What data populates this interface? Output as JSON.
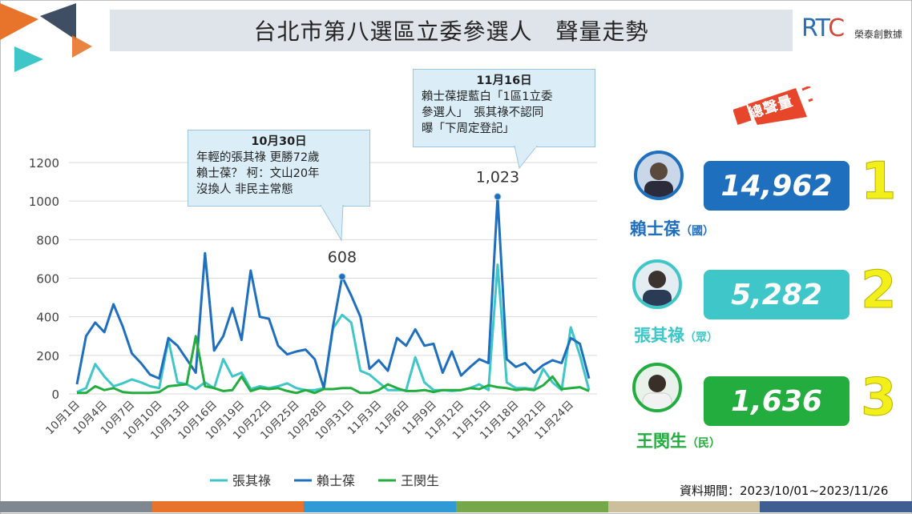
{
  "title": "台北市第八選區立委參選人　聲量走勢",
  "logo": {
    "rtc": "RT",
    "rtc_c": "C",
    "sub": "榮泰創數據"
  },
  "chart_data": {
    "type": "line",
    "ylim": [
      0,
      1200
    ],
    "yticks": [
      0,
      200,
      400,
      600,
      800,
      1000,
      1200
    ],
    "x": [
      "10月1日",
      "10月2日",
      "10月3日",
      "10月4日",
      "10月5日",
      "10月6日",
      "10月7日",
      "10月8日",
      "10月9日",
      "10月10日",
      "10月11日",
      "10月12日",
      "10月13日",
      "10月14日",
      "10月15日",
      "10月16日",
      "10月17日",
      "10月18日",
      "10月19日",
      "10月20日",
      "10月21日",
      "10月22日",
      "10月23日",
      "10月24日",
      "10月25日",
      "10月26日",
      "10月27日",
      "10月28日",
      "10月29日",
      "10月30日",
      "10月31日",
      "11月1日",
      "11月2日",
      "11月3日",
      "11月4日",
      "11月5日",
      "11月6日",
      "11月7日",
      "11月8日",
      "11月9日",
      "11月10日",
      "11月11日",
      "11月12日",
      "11月13日",
      "11月14日",
      "11月15日",
      "11月16日",
      "11月17日",
      "11月18日",
      "11月19日",
      "11月20日",
      "11月21日",
      "11月22日",
      "11月23日",
      "11月24日",
      "11月25日",
      "11月26日"
    ],
    "xtick_labels": [
      "10月1日",
      "10月4日",
      "10月7日",
      "10月10日",
      "10月13日",
      "10月16日",
      "10月19日",
      "10月22日",
      "10月25日",
      "10月28日",
      "10月31日",
      "11月3日",
      "11月6日",
      "11月9日",
      "11月12日",
      "11月15日",
      "11月18日",
      "11月21日",
      "11月24日"
    ],
    "series": [
      {
        "name": "張其祿",
        "color": "#3fc6c8",
        "values": [
          10,
          30,
          155,
          90,
          40,
          55,
          75,
          60,
          40,
          30,
          280,
          60,
          50,
          25,
          60,
          30,
          180,
          90,
          110,
          25,
          40,
          30,
          40,
          55,
          30,
          20,
          20,
          30,
          340,
          410,
          370,
          120,
          100,
          60,
          20,
          20,
          20,
          190,
          60,
          20,
          20,
          15,
          20,
          30,
          50,
          20,
          670,
          60,
          30,
          30,
          25,
          130,
          60,
          20,
          345,
          200,
          20
        ]
      },
      {
        "name": "賴士葆",
        "color": "#1f6fbf",
        "values": [
          50,
          300,
          370,
          320,
          465,
          350,
          210,
          160,
          100,
          80,
          290,
          250,
          180,
          110,
          730,
          225,
          300,
          445,
          280,
          640,
          400,
          390,
          250,
          205,
          220,
          230,
          180,
          30,
          350,
          608,
          510,
          400,
          130,
          175,
          120,
          290,
          250,
          335,
          250,
          260,
          110,
          220,
          95,
          140,
          180,
          160,
          1023,
          180,
          140,
          160,
          110,
          150,
          175,
          160,
          290,
          260,
          80
        ]
      },
      {
        "name": "王閔生",
        "color": "#22ad3e",
        "values": [
          5,
          5,
          40,
          20,
          30,
          10,
          5,
          5,
          5,
          10,
          40,
          45,
          50,
          300,
          40,
          30,
          15,
          20,
          90,
          15,
          30,
          25,
          30,
          15,
          5,
          20,
          5,
          25,
          25,
          30,
          30,
          5,
          5,
          20,
          50,
          30,
          15,
          15,
          20,
          10,
          20,
          20,
          20,
          30,
          25,
          45,
          35,
          30,
          20,
          25,
          20,
          45,
          90,
          25,
          30,
          35,
          15
        ]
      }
    ],
    "point_labels": [
      {
        "series": "賴士葆",
        "x": "10月30日",
        "label": "608"
      },
      {
        "series": "賴士葆",
        "x": "11月16日",
        "label": "1,023"
      }
    ],
    "legend": {
      "placement": "bottom",
      "items": [
        "張其祿",
        "賴士葆",
        "王閔生"
      ]
    },
    "grid": true
  },
  "annotations": [
    {
      "date": "10月30日",
      "lines": [
        "年輕的張其祿 更勝72歲",
        "賴士葆？ 柯：文山20年",
        "沒換人 非民主常態"
      ]
    },
    {
      "date": "11月16日",
      "lines": [
        "賴士葆提藍白「1區1立委",
        "參選人」　張其祿不認同",
        "曝「下周定登記」"
      ]
    }
  ],
  "total_label": "總聲量",
  "candidates": [
    {
      "name": "賴士葆",
      "party": "（國）",
      "volume": "14,962",
      "rank": "1",
      "color": "#1f6fbf"
    },
    {
      "name": "張其祿",
      "party": "（眾）",
      "volume": "5,282",
      "rank": "2",
      "color": "#3fc6c8"
    },
    {
      "name": "王閔生",
      "party": "（民）",
      "volume": "1,636",
      "rank": "3",
      "color": "#22ad3e"
    }
  ],
  "source": "資料期間：2023/10/01~2023/11/26",
  "bottom_colors": [
    "#7f8790",
    "#e8742b",
    "#2f9ad6",
    "#76a84b",
    "#cdbf9c",
    "#3f5f93"
  ]
}
